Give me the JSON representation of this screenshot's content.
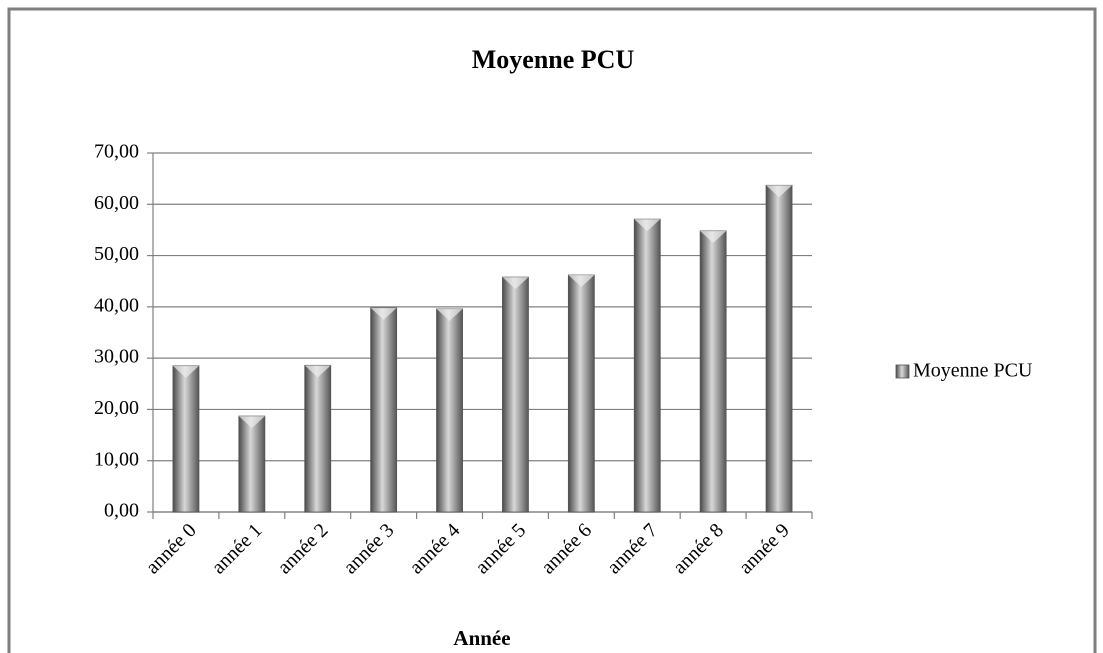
{
  "chart_data": {
    "type": "bar",
    "title": "Moyenne PCU",
    "x_label": "Année",
    "categories": [
      "année 0",
      "année 1",
      "année 2",
      "année 3",
      "année 4",
      "année 5",
      "année 6",
      "année 7",
      "année 8",
      "année 9"
    ],
    "series": [
      {
        "name": "Moyenne PCU",
        "color": "#9a9a9a",
        "values": [
          28.5,
          18.7,
          28.6,
          39.8,
          39.6,
          45.8,
          46.2,
          57.1,
          54.8,
          63.7
        ]
      }
    ],
    "ylim": [
      0,
      70
    ],
    "yticks": [
      {
        "value": 0,
        "label": "0,00"
      },
      {
        "value": 10,
        "label": "10,00"
      },
      {
        "value": 20,
        "label": "20,00"
      },
      {
        "value": 30,
        "label": "30,00"
      },
      {
        "value": 40,
        "label": "40,00"
      },
      {
        "value": 50,
        "label": "50,00"
      },
      {
        "value": 60,
        "label": "60,00"
      },
      {
        "value": 70,
        "label": "70,00"
      }
    ],
    "grid": true,
    "legend": "right"
  }
}
